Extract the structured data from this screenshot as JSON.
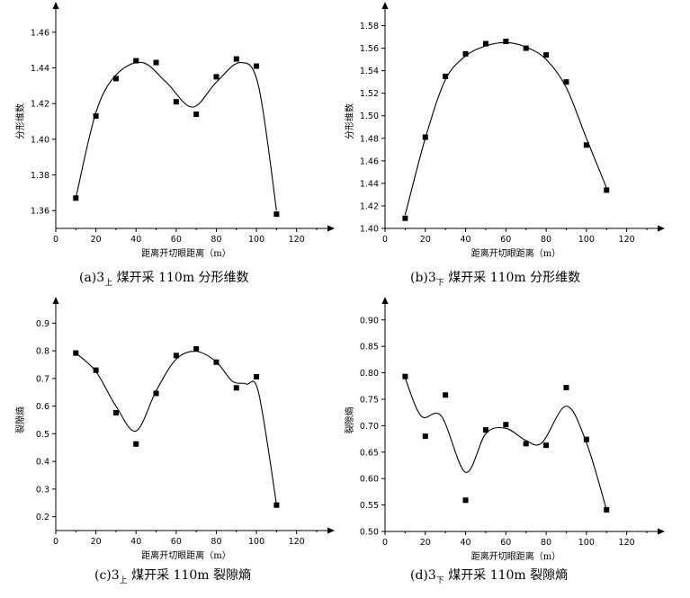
{
  "chart_data": [
    {
      "id": "a",
      "type": "scatter",
      "caption": {
        "prefix": "(a)3",
        "sub": "上",
        "suffix": " 煤开采 110m 分形维数"
      },
      "xlabel": "距离开切眼距离（m）",
      "ylabel": "分形维数",
      "xlim": [
        0,
        130
      ],
      "ylim": [
        1.35,
        1.47
      ],
      "xticks": [
        0,
        20,
        40,
        60,
        80,
        100,
        120
      ],
      "yticks": [
        1.36,
        1.38,
        1.4,
        1.42,
        1.44,
        1.46
      ],
      "ydecimals": 2,
      "x": [
        10,
        20,
        30,
        40,
        50,
        60,
        70,
        80,
        90,
        100,
        110
      ],
      "y": [
        1.367,
        1.413,
        1.434,
        1.444,
        1.443,
        1.421,
        1.414,
        1.435,
        1.445,
        1.441,
        1.358
      ],
      "curve": [
        [
          10,
          1.367
        ],
        [
          20,
          1.415
        ],
        [
          30,
          1.436
        ],
        [
          43,
          1.443
        ],
        [
          55,
          1.432
        ],
        [
          68,
          1.418
        ],
        [
          80,
          1.432
        ],
        [
          92,
          1.443
        ],
        [
          101,
          1.43
        ],
        [
          110,
          1.36
        ]
      ],
      "grid": false,
      "legend": "none"
    },
    {
      "id": "b",
      "type": "scatter",
      "caption": {
        "prefix": "(b)3",
        "sub": "下",
        "suffix": " 煤开采 110m 分形维数"
      },
      "xlabel": "距离开切眼距离（m）",
      "ylabel": "分形维数",
      "xlim": [
        0,
        130
      ],
      "ylim": [
        1.4,
        1.59
      ],
      "xticks": [
        0,
        20,
        40,
        60,
        80,
        100,
        120
      ],
      "yticks": [
        1.4,
        1.42,
        1.44,
        1.46,
        1.48,
        1.5,
        1.52,
        1.54,
        1.56,
        1.58
      ],
      "ydecimals": 2,
      "x": [
        10,
        20,
        30,
        40,
        50,
        60,
        70,
        80,
        90,
        100,
        110
      ],
      "y": [
        1.409,
        1.481,
        1.535,
        1.555,
        1.564,
        1.566,
        1.56,
        1.554,
        1.53,
        1.474,
        1.434
      ],
      "curve": [
        [
          10,
          1.412
        ],
        [
          20,
          1.48
        ],
        [
          30,
          1.532
        ],
        [
          40,
          1.553
        ],
        [
          50,
          1.562
        ],
        [
          60,
          1.565
        ],
        [
          70,
          1.561
        ],
        [
          80,
          1.55
        ],
        [
          90,
          1.525
        ],
        [
          100,
          1.48
        ],
        [
          110,
          1.436
        ]
      ],
      "grid": false,
      "legend": "none"
    },
    {
      "id": "c",
      "type": "scatter",
      "caption": {
        "prefix": "(c)3",
        "sub": "上",
        "suffix": " 煤开采 110m 裂隙熵"
      },
      "xlabel": "距离开切眼距离（m）",
      "ylabel": "裂隙熵",
      "xlim": [
        0,
        130
      ],
      "ylim": [
        0.15,
        0.95
      ],
      "xticks": [
        0,
        20,
        40,
        60,
        80,
        100,
        120
      ],
      "yticks": [
        0.2,
        0.3,
        0.4,
        0.5,
        0.6,
        0.7,
        0.8,
        0.9
      ],
      "ydecimals": 1,
      "x": [
        10,
        20,
        30,
        40,
        50,
        60,
        70,
        80,
        90,
        100,
        110
      ],
      "y": [
        0.792,
        0.73,
        0.576,
        0.463,
        0.646,
        0.783,
        0.807,
        0.759,
        0.666,
        0.706,
        0.242
      ],
      "curve": [
        [
          10,
          0.792
        ],
        [
          20,
          0.725
        ],
        [
          30,
          0.6
        ],
        [
          40,
          0.51
        ],
        [
          50,
          0.655
        ],
        [
          60,
          0.77
        ],
        [
          70,
          0.798
        ],
        [
          80,
          0.76
        ],
        [
          88,
          0.69
        ],
        [
          95,
          0.68
        ],
        [
          101,
          0.65
        ],
        [
          110,
          0.245
        ]
      ],
      "grid": false,
      "legend": "none"
    },
    {
      "id": "d",
      "type": "scatter",
      "caption": {
        "prefix": "(d)3",
        "sub": "下",
        "suffix": " 煤开采 110m 裂隙熵"
      },
      "xlabel": "距离开切眼距离（m）",
      "ylabel": "裂隙熵",
      "xlim": [
        0,
        130
      ],
      "ylim": [
        0.5,
        0.92
      ],
      "xticks": [
        0,
        20,
        40,
        60,
        80,
        100,
        120
      ],
      "yticks": [
        0.5,
        0.55,
        0.6,
        0.65,
        0.7,
        0.75,
        0.8,
        0.85,
        0.9
      ],
      "ydecimals": 2,
      "x": [
        10,
        20,
        30,
        40,
        50,
        60,
        70,
        80,
        90,
        100,
        110
      ],
      "y": [
        0.793,
        0.68,
        0.758,
        0.559,
        0.692,
        0.702,
        0.666,
        0.663,
        0.772,
        0.674,
        0.541
      ],
      "curve": [
        [
          10,
          0.79
        ],
        [
          18,
          0.718
        ],
        [
          28,
          0.718
        ],
        [
          40,
          0.612
        ],
        [
          50,
          0.685
        ],
        [
          60,
          0.695
        ],
        [
          70,
          0.672
        ],
        [
          78,
          0.668
        ],
        [
          90,
          0.737
        ],
        [
          100,
          0.668
        ],
        [
          110,
          0.541
        ]
      ],
      "grid": false,
      "legend": "none"
    }
  ]
}
